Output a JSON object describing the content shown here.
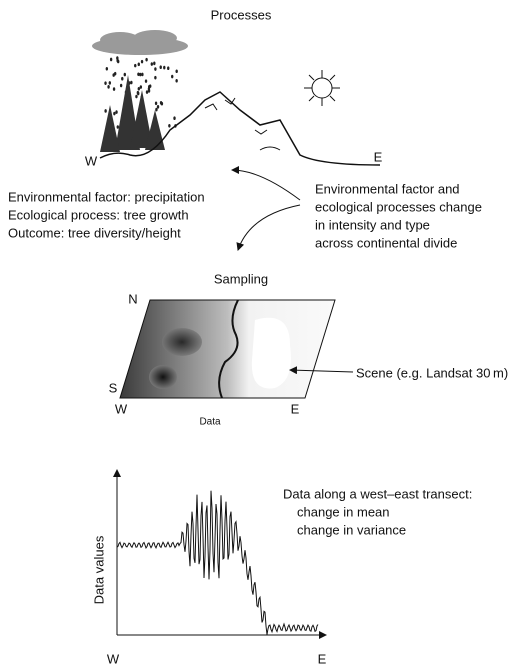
{
  "processes": {
    "title": "Processes",
    "west": "W",
    "east": "E",
    "left_text": [
      "Environmental factor: precipitation",
      "Ecological process: tree growth",
      "Outcome: tree diversity/height"
    ],
    "right_text": [
      "Environmental factor and",
      "ecological processes change",
      "in intensity and type",
      "across continental divide"
    ]
  },
  "sampling": {
    "title": "Sampling",
    "north": "N",
    "south": "S",
    "west": "W",
    "east": "E",
    "data_label": "Data",
    "scene_label": "Scene (e.g. Landsat 30 m)"
  },
  "transect": {
    "caption": [
      "Data along a west–east transect:",
      "change in mean",
      "change in variance"
    ],
    "y_label": "Data values",
    "west": "W",
    "east": "E"
  }
}
